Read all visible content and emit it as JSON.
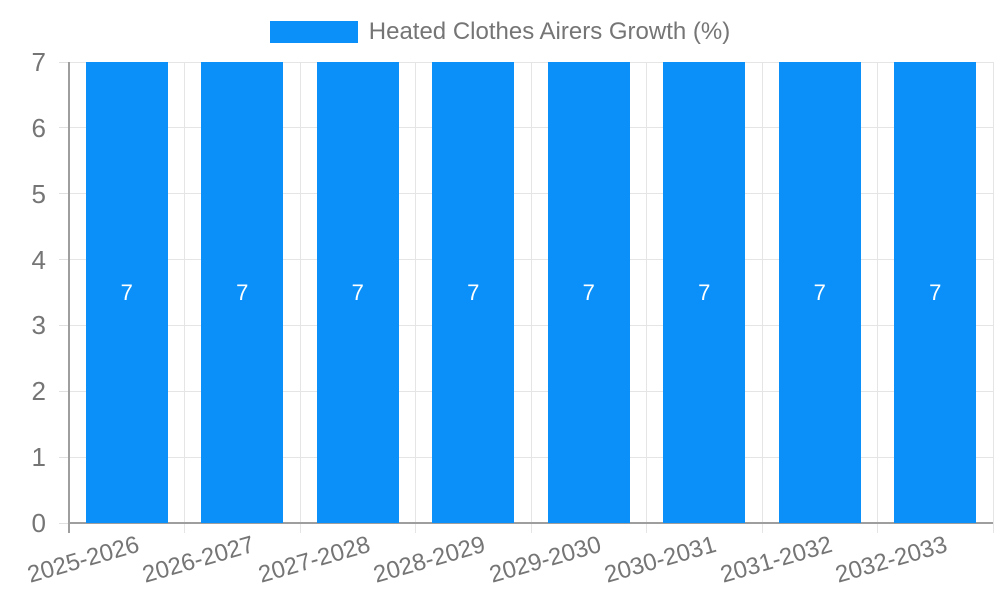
{
  "chart_data": {
    "type": "bar",
    "title": "",
    "legend_label": "Heated Clothes Airers Growth (%)",
    "legend_position": "top",
    "categories": [
      "2025-2026",
      "2026-2027",
      "2027-2028",
      "2028-2029",
      "2029-2030",
      "2030-2031",
      "2031-2032",
      "2032-2033"
    ],
    "values": [
      7,
      7,
      7,
      7,
      7,
      7,
      7,
      7
    ],
    "bar_value_labels": [
      "7",
      "7",
      "7",
      "7",
      "7",
      "7",
      "7",
      "7"
    ],
    "xlabel": "",
    "ylabel": "",
    "ylim": [
      0,
      7
    ],
    "yticks": [
      0,
      1,
      2,
      3,
      4,
      5,
      6,
      7
    ],
    "grid": true,
    "bar_color": "#0a90f8",
    "value_label_color": "#ffffff",
    "axis_text_color": "#757575",
    "gridline_color": "#e5e5e5",
    "axis_line_color": "#9e9e9e",
    "x_tick_rotation_deg": -16
  }
}
